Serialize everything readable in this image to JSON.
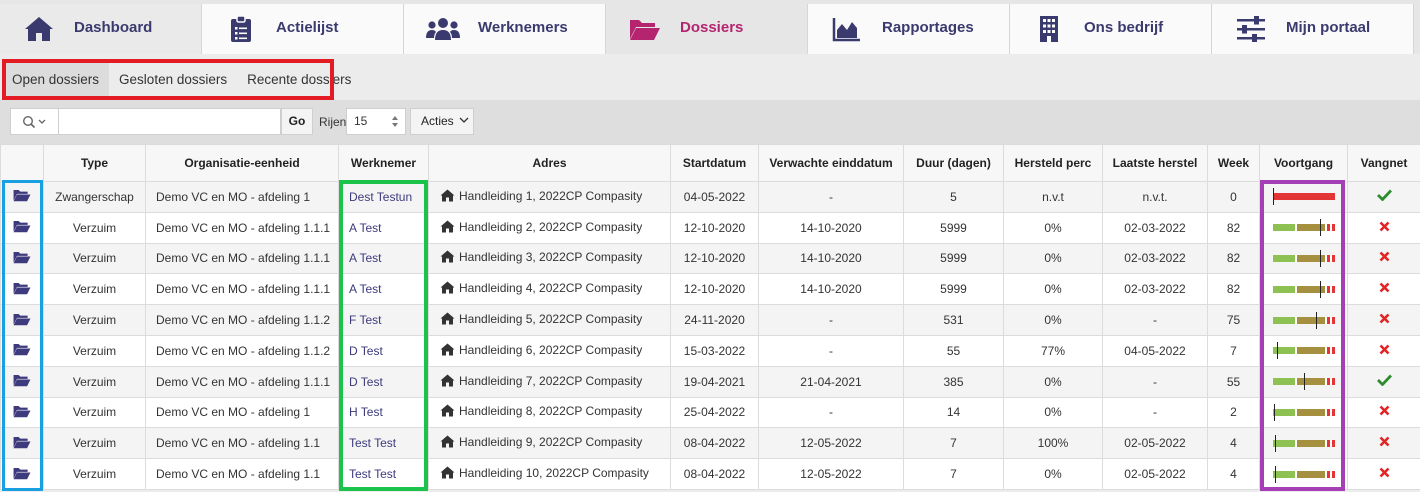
{
  "nav": [
    {
      "label": "Dashboard",
      "icon": "home-icon"
    },
    {
      "label": "Actielijst",
      "icon": "clipboard-icon"
    },
    {
      "label": "Werknemers",
      "icon": "users-icon"
    },
    {
      "label": "Dossiers",
      "icon": "folder-open-icon",
      "active": true
    },
    {
      "label": "Rapportages",
      "icon": "area-chart-icon"
    },
    {
      "label": "Ons bedrijf",
      "icon": "building-icon"
    },
    {
      "label": "Mijn portaal",
      "icon": "sliders-icon"
    }
  ],
  "subtabs": [
    "Open dossiers",
    "Gesloten dossiers",
    "Recente dossiers"
  ],
  "toolbar": {
    "search_value": "",
    "go_label": "Go",
    "rows_label": "Rijen",
    "rows_value": "15",
    "acties_label": "Acties"
  },
  "columns": [
    "",
    "Type",
    "Organisatie-eenheid",
    "Werknemer",
    "Adres",
    "Startdatum",
    "Verwachte einddatum",
    "Duur (dagen)",
    "Hersteld perc",
    "Laatste herstel",
    "Week",
    "Voortgang",
    "Vangnet"
  ],
  "rows": [
    {
      "type": "Zwangerschap",
      "org": "Demo VC en MO - afdeling 1",
      "employee": "Dest Testun",
      "address": "Handleiding 1, 2022CP Compasity",
      "start": "04-05-2022",
      "expected_end": "-",
      "duration": "5",
      "recovered_pct": "n.v.t",
      "last_recovery": "n.v.t.",
      "week": "0",
      "progress": 0,
      "vangnet": "check"
    },
    {
      "type": "Verzuim",
      "org": "Demo VC en MO - afdeling 1.1.1",
      "employee": "A Test",
      "address": "Handleiding 2, 2022CP Compasity",
      "start": "12-10-2020",
      "expected_end": "14-10-2020",
      "duration": "5999",
      "recovered_pct": "0%",
      "last_recovery": "02-03-2022",
      "week": "82",
      "progress": 0.76,
      "vangnet": "cross"
    },
    {
      "type": "Verzuim",
      "org": "Demo VC en MO - afdeling 1.1.1",
      "employee": "A Test",
      "address": "Handleiding 3, 2022CP Compasity",
      "start": "12-10-2020",
      "expected_end": "14-10-2020",
      "duration": "5999",
      "recovered_pct": "0%",
      "last_recovery": "02-03-2022",
      "week": "82",
      "progress": 0.76,
      "vangnet": "cross"
    },
    {
      "type": "Verzuim",
      "org": "Demo VC en MO - afdeling 1.1.1",
      "employee": "A Test",
      "address": "Handleiding 4, 2022CP Compasity",
      "start": "12-10-2020",
      "expected_end": "14-10-2020",
      "duration": "5999",
      "recovered_pct": "0%",
      "last_recovery": "02-03-2022",
      "week": "82",
      "progress": 0.76,
      "vangnet": "cross"
    },
    {
      "type": "Verzuim",
      "org": "Demo VC en MO - afdeling 1.1.2",
      "employee": "F Test",
      "address": "Handleiding 5, 2022CP Compasity",
      "start": "24-11-2020",
      "expected_end": "-",
      "duration": "531",
      "recovered_pct": "0%",
      "last_recovery": "-",
      "week": "75",
      "progress": 0.7,
      "vangnet": "cross"
    },
    {
      "type": "Verzuim",
      "org": "Demo VC en MO - afdeling 1.1.2",
      "employee": "D Test",
      "address": "Handleiding 6, 2022CP Compasity",
      "start": "15-03-2022",
      "expected_end": "-",
      "duration": "55",
      "recovered_pct": "77%",
      "last_recovery": "04-05-2022",
      "week": "7",
      "progress": 0.07,
      "vangnet": "cross"
    },
    {
      "type": "Verzuim",
      "org": "Demo VC en MO - afdeling 1.1.1",
      "employee": "D Test",
      "address": "Handleiding 7, 2022CP Compasity",
      "start": "19-04-2021",
      "expected_end": "21-04-2021",
      "duration": "385",
      "recovered_pct": "0%",
      "last_recovery": "-",
      "week": "55",
      "progress": 0.5,
      "vangnet": "check"
    },
    {
      "type": "Verzuim",
      "org": "Demo VC en MO - afdeling 1",
      "employee": "H Test",
      "address": "Handleiding 8, 2022CP Compasity",
      "start": "25-04-2022",
      "expected_end": "-",
      "duration": "14",
      "recovered_pct": "0%",
      "last_recovery": "-",
      "week": "2",
      "progress": 0.02,
      "vangnet": "cross"
    },
    {
      "type": "Verzuim",
      "org": "Demo VC en MO - afdeling 1.1",
      "employee": "Test Test",
      "address": "Handleiding 9, 2022CP Compasity",
      "start": "08-04-2022",
      "expected_end": "12-05-2022",
      "duration": "7",
      "recovered_pct": "100%",
      "last_recovery": "02-05-2022",
      "week": "4",
      "progress": 0.04,
      "vangnet": "cross"
    },
    {
      "type": "Verzuim",
      "org": "Demo VC en MO - afdeling 1.1",
      "employee": "Test Test",
      "address": "Handleiding 10, 2022CP Compasity",
      "start": "08-04-2022",
      "expected_end": "12-05-2022",
      "duration": "7",
      "recovered_pct": "0%",
      "last_recovery": "02-05-2022",
      "week": "4",
      "progress": 0.04,
      "vangnet": "cross"
    }
  ],
  "colors": {
    "nav_text": "#3b3a6e",
    "nav_active": "#b5256f",
    "highlight_red": "#e21b24",
    "highlight_blue": "#19a0e0",
    "highlight_green": "#1cc34a",
    "highlight_purple": "#a43fb5",
    "check": "#2e8b2e",
    "cross": "#e32424"
  }
}
